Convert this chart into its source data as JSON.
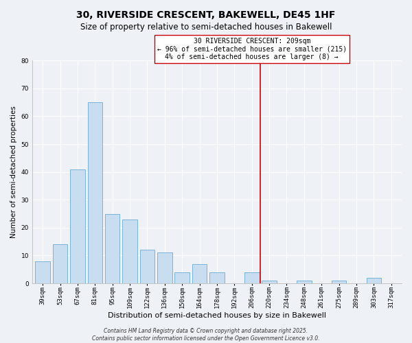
{
  "title": "30, RIVERSIDE CRESCENT, BAKEWELL, DE45 1HF",
  "subtitle": "Size of property relative to semi-detached houses in Bakewell",
  "xlabel": "Distribution of semi-detached houses by size in Bakewell",
  "ylabel": "Number of semi-detached properties",
  "bin_labels": [
    "39sqm",
    "53sqm",
    "67sqm",
    "81sqm",
    "95sqm",
    "109sqm",
    "122sqm",
    "136sqm",
    "150sqm",
    "164sqm",
    "178sqm",
    "192sqm",
    "206sqm",
    "220sqm",
    "234sqm",
    "248sqm",
    "261sqm",
    "275sqm",
    "289sqm",
    "303sqm",
    "317sqm"
  ],
  "bar_values": [
    8,
    14,
    41,
    65,
    25,
    23,
    12,
    11,
    4,
    7,
    4,
    0,
    4,
    1,
    0,
    1,
    0,
    1,
    0,
    2,
    0
  ],
  "bar_color": "#c8ddf0",
  "bar_edge_color": "#6aaad4",
  "vline_x": 12.5,
  "vline_color": "#cc0000",
  "ylim": [
    0,
    80
  ],
  "yticks": [
    0,
    10,
    20,
    30,
    40,
    50,
    60,
    70,
    80
  ],
  "annotation_title": "30 RIVERSIDE CRESCENT: 209sqm",
  "annotation_line1": "← 96% of semi-detached houses are smaller (215)",
  "annotation_line2": "4% of semi-detached houses are larger (8) →",
  "annotation_box_color": "#ffffff",
  "annotation_box_edge": "#cc0000",
  "footer_line1": "Contains HM Land Registry data © Crown copyright and database right 2025.",
  "footer_line2": "Contains public sector information licensed under the Open Government Licence v3.0.",
  "background_color": "#eef2f7",
  "grid_color": "#ffffff",
  "title_fontsize": 10,
  "subtitle_fontsize": 8.5,
  "xlabel_fontsize": 8,
  "ylabel_fontsize": 7.5,
  "tick_fontsize": 6.5,
  "annot_fontsize": 7,
  "footer_fontsize": 5.5
}
